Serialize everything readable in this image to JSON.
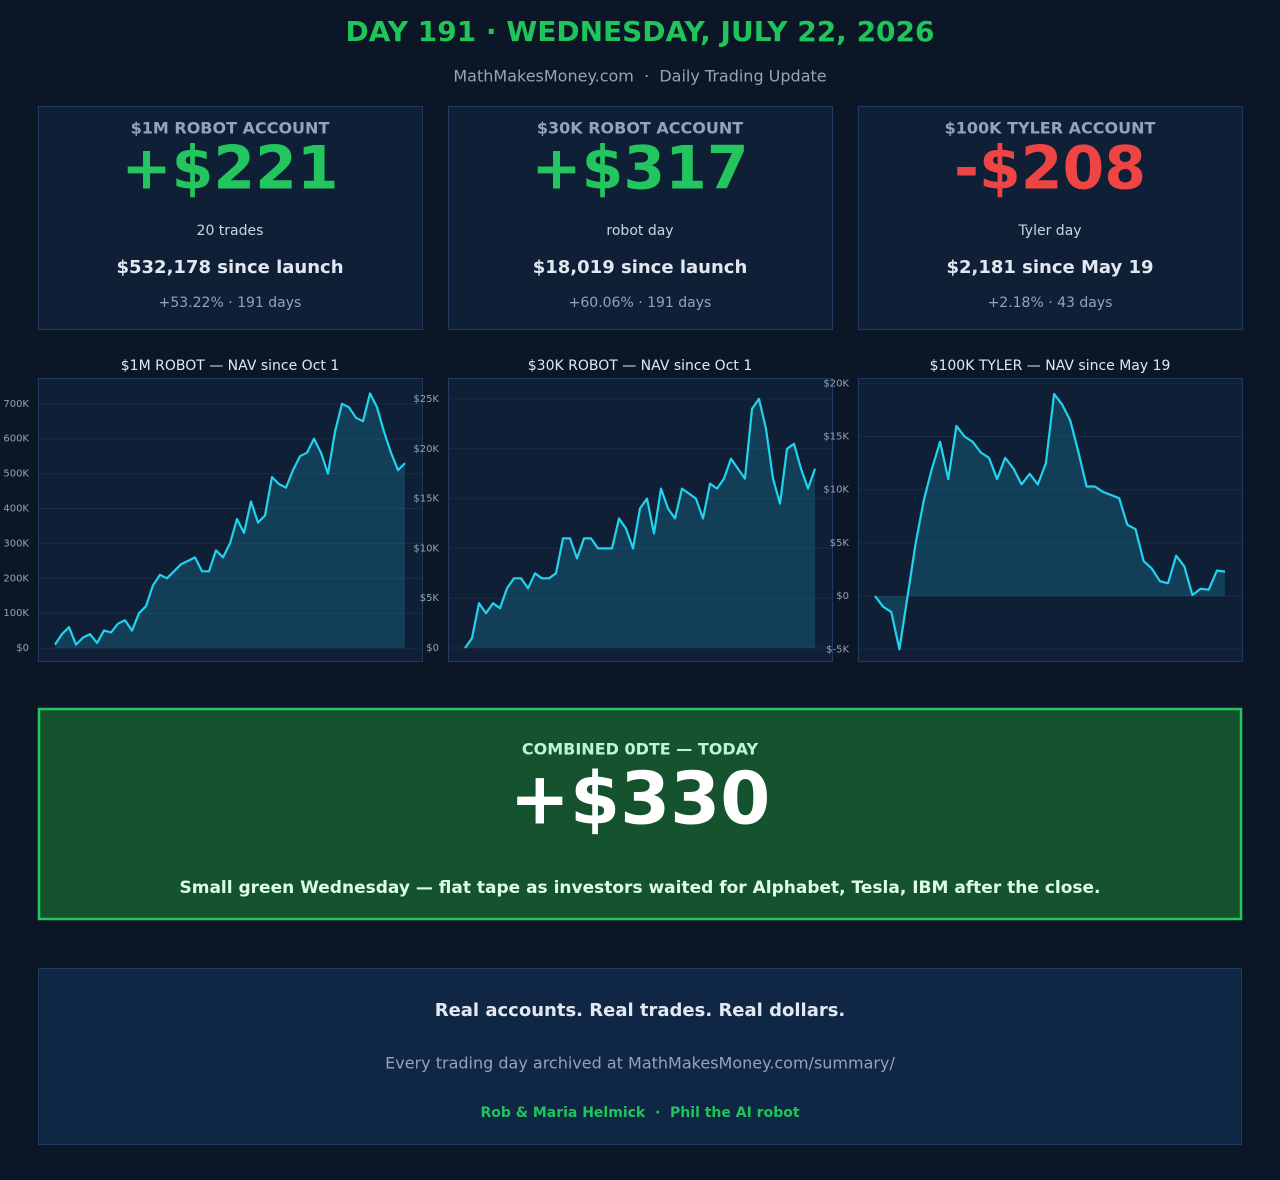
{
  "header": {
    "title": "DAY 191 · WEDNESDAY, JULY 22, 2026",
    "subtitle": "MathMakesMoney.com  ·  Daily Trading Update"
  },
  "cards": [
    {
      "label": "$1M ROBOT ACCOUNT",
      "value": "+$221",
      "color": "#22c55e",
      "note": "20 trades",
      "since": "$532,178 since launch",
      "detail": "+53.22% · 191 days"
    },
    {
      "label": "$30K ROBOT ACCOUNT",
      "value": "+$317",
      "color": "#22c55e",
      "note": "robot day",
      "since": "$18,019 since launch",
      "detail": "+60.06% · 191 days"
    },
    {
      "label": "$100K TYLER ACCOUNT",
      "value": "-$208",
      "color": "#ef4444",
      "note": "Tyler day",
      "since": "$2,181 since May 19",
      "detail": "+2.18% · 43 days"
    }
  ],
  "chart_data": [
    {
      "type": "area",
      "title": "$1M ROBOT — NAV since Oct 1",
      "color": "#22d3ee",
      "grid": true,
      "values": [
        10000,
        40000,
        60000,
        10000,
        30000,
        40000,
        15000,
        50000,
        45000,
        70000,
        80000,
        50000,
        100000,
        120000,
        180000,
        210000,
        200000,
        220000,
        240000,
        250000,
        260000,
        220000,
        220000,
        280000,
        260000,
        300000,
        370000,
        330000,
        420000,
        360000,
        380000,
        490000,
        470000,
        460000,
        510000,
        550000,
        560000,
        600000,
        560000,
        500000,
        620000,
        700000,
        690000,
        660000,
        650000,
        730000,
        690000,
        620000,
        560000,
        510000,
        530000
      ],
      "ylim": [
        -37000,
        774000
      ],
      "yticks": [
        {
          "value": 0,
          "label": "$0"
        },
        {
          "value": 100000,
          "label": "100K"
        },
        {
          "value": 200000,
          "label": "200K"
        },
        {
          "value": 300000,
          "label": "300K"
        },
        {
          "value": 400000,
          "label": "400K"
        },
        {
          "value": 500000,
          "label": "500K"
        },
        {
          "value": 600000,
          "label": "600K"
        },
        {
          "value": 700000,
          "label": "700K"
        }
      ]
    },
    {
      "type": "area",
      "title": "$30K ROBOT — NAV since Oct 1",
      "color": "#22d3ee",
      "grid": true,
      "values": [
        0,
        1000,
        4500,
        3500,
        4500,
        4000,
        6000,
        7000,
        7000,
        6000,
        7500,
        7000,
        7000,
        7500,
        11000,
        11000,
        9000,
        11000,
        11000,
        10000,
        10000,
        10000,
        13000,
        12000,
        10000,
        14000,
        15000,
        11500,
        16000,
        14000,
        13000,
        16000,
        15500,
        15000,
        13000,
        16500,
        16000,
        17000,
        19000,
        18000,
        17000,
        24000,
        25000,
        22000,
        17000,
        14500,
        20000,
        20500,
        18000,
        16000,
        18000
      ],
      "ylim": [
        -1300,
        27100
      ],
      "yticks": [
        {
          "value": 0,
          "label": "$0"
        },
        {
          "value": 5000,
          "label": "$5K"
        },
        {
          "value": 10000,
          "label": "$10K"
        },
        {
          "value": 15000,
          "label": "$15K"
        },
        {
          "value": 20000,
          "label": "$20K"
        },
        {
          "value": 25000,
          "label": "$25K"
        }
      ]
    },
    {
      "type": "area",
      "title": "$100K TYLER — NAV since May 19",
      "color": "#22d3ee",
      "grid": true,
      "values": [
        0,
        -1000,
        -1500,
        -5000,
        0,
        5000,
        9000,
        12000,
        14500,
        11000,
        16000,
        15000,
        14500,
        13500,
        13000,
        11000,
        13000,
        12000,
        10500,
        11500,
        10500,
        12500,
        19000,
        18000,
        16500,
        13500,
        10300,
        10300,
        9800,
        9500,
        9200,
        6700,
        6300,
        3300,
        2600,
        1400,
        1200,
        3800,
        2800,
        100,
        700,
        600,
        2400,
        2300
      ],
      "ylim": [
        -6100,
        20500
      ],
      "yticks": [
        {
          "value": -5000,
          "label": "$-5K"
        },
        {
          "value": 0,
          "label": "$0"
        },
        {
          "value": 5000,
          "label": "$5K"
        },
        {
          "value": 10000,
          "label": "$10K"
        },
        {
          "value": 15000,
          "label": "$15K"
        },
        {
          "value": 20000,
          "label": "$20K"
        }
      ]
    }
  ],
  "banner": {
    "label": "COMBINED 0DTE — TODAY",
    "value": "+$330",
    "caption": "Small green Wednesday — flat tape as investors waited for Alphabet, Tesla, IBM after the close."
  },
  "footer": {
    "tagline": "Real accounts. Real trades. Real dollars.",
    "archive": "Every trading day archived at MathMakesMoney.com/summary/",
    "credits": "Rob & Maria Helmick  ·  Phil the AI robot"
  }
}
